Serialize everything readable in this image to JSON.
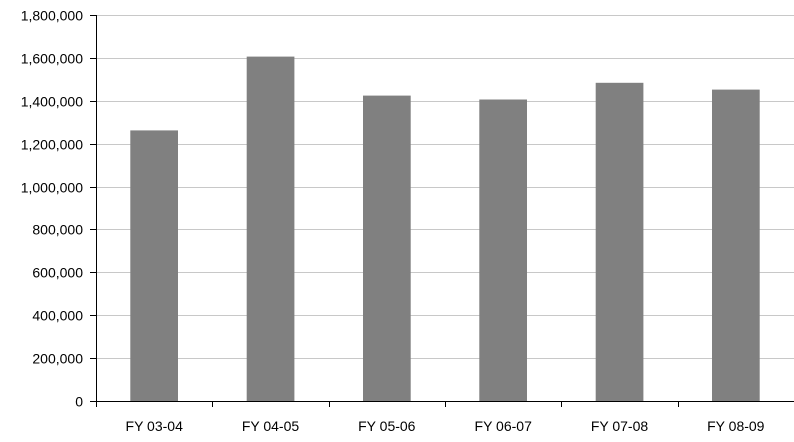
{
  "chart_data": {
    "type": "bar",
    "categories": [
      "FY 03-04",
      "FY 04-05",
      "FY 05-06",
      "FY 06-07",
      "FY 07-08",
      "FY 08-09"
    ],
    "values": [
      1262000,
      1606000,
      1424000,
      1406000,
      1484000,
      1452000
    ],
    "title": "",
    "xlabel": "",
    "ylabel": "",
    "ylim": [
      0,
      1800000
    ],
    "yticks": [
      0,
      200000,
      400000,
      600000,
      800000,
      1000000,
      1200000,
      1400000,
      1600000,
      1800000
    ],
    "ytick_labels": [
      "0",
      "200,000",
      "400,000",
      "600,000",
      "800,000",
      "1,000,000",
      "1,200,000",
      "1,400,000",
      "1,600,000",
      "1,800,000"
    ],
    "grid": true,
    "legend": "none",
    "colors": {
      "bar": "#808080",
      "grid": "#c8c8c8",
      "axis": "#000000"
    }
  }
}
